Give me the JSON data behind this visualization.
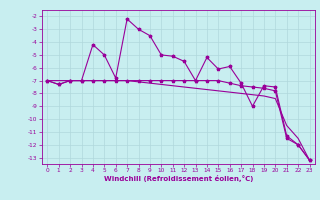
{
  "xlabel": "Windchill (Refroidissement éolien,°C)",
  "x": [
    0,
    1,
    2,
    3,
    4,
    5,
    6,
    7,
    8,
    9,
    10,
    11,
    12,
    13,
    14,
    15,
    16,
    17,
    18,
    19,
    20,
    21,
    22,
    23
  ],
  "line1": [
    -7.0,
    -7.3,
    -7.0,
    -7.0,
    -4.2,
    -5.0,
    -6.8,
    -2.2,
    -3.0,
    -3.5,
    -5.0,
    -5.1,
    -5.5,
    -7.0,
    -5.2,
    -6.1,
    -5.9,
    -7.2,
    -9.0,
    -7.4,
    -7.5,
    -11.3,
    -12.0,
    -13.2
  ],
  "line2": [
    -7.0,
    -7.3,
    -7.0,
    -7.0,
    -7.0,
    -7.0,
    -7.0,
    -7.0,
    -7.0,
    -7.0,
    -7.0,
    -7.0,
    -7.0,
    -7.0,
    -7.0,
    -7.0,
    -7.2,
    -7.4,
    -7.5,
    -7.6,
    -7.8,
    -11.5,
    -12.0,
    -13.2
  ],
  "line3": [
    -7.0,
    -7.0,
    -7.0,
    -7.0,
    -7.0,
    -7.0,
    -7.0,
    -7.0,
    -7.1,
    -7.2,
    -7.3,
    -7.4,
    -7.5,
    -7.6,
    -7.7,
    -7.8,
    -7.9,
    -8.0,
    -8.1,
    -8.2,
    -8.4,
    -10.5,
    -11.5,
    -13.2
  ],
  "bg_color": "#c8eef0",
  "grid_color": "#b0d8dc",
  "line_color": "#990099",
  "ylim": [
    -13.5,
    -1.5
  ],
  "xlim": [
    -0.5,
    23.5
  ],
  "yticks": [
    -2,
    -3,
    -4,
    -5,
    -6,
    -7,
    -8,
    -9,
    -10,
    -11,
    -12,
    -13
  ],
  "xticks": [
    0,
    1,
    2,
    3,
    4,
    5,
    6,
    7,
    8,
    9,
    10,
    11,
    12,
    13,
    14,
    15,
    16,
    17,
    18,
    19,
    20,
    21,
    22,
    23
  ],
  "tick_fontsize": 4.2,
  "xlabel_fontsize": 5.0,
  "marker_size": 2.5,
  "line_width": 0.8
}
